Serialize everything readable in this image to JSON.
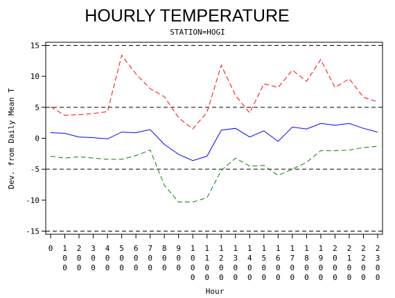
{
  "chart_data": {
    "type": "line",
    "title": "HOURLY TEMPERATURE",
    "subtitle": "STATION=HOGI",
    "xlabel": "Hour",
    "ylabel": "Dev. from Daily Mean T",
    "x": [
      "0",
      "100",
      "200",
      "300",
      "400",
      "500",
      "600",
      "700",
      "800",
      "900",
      "1000",
      "1100",
      "1200",
      "1300",
      "1400",
      "1500",
      "1600",
      "1700",
      "1800",
      "1900",
      "2000",
      "2100",
      "2200",
      "2300"
    ],
    "y_ticks": [
      -15,
      -10,
      -5,
      0,
      5,
      10,
      15
    ],
    "ylim": [
      -15.5,
      15.5
    ],
    "reference_lines": [
      -15,
      -5,
      5,
      15
    ],
    "grid": false,
    "legend": "none",
    "series": [
      {
        "color": "#ff0000",
        "style": "dashed",
        "values": [
          5.1,
          3.7,
          3.8,
          4.0,
          4.3,
          13.4,
          10.4,
          8.0,
          6.7,
          3.3,
          1.5,
          4.2,
          11.8,
          6.9,
          4.1,
          8.8,
          8.2,
          11.0,
          9.2,
          12.7,
          8.2,
          9.6,
          6.6,
          5.9
        ]
      },
      {
        "color": "#0000ff",
        "style": "solid",
        "values": [
          0.9,
          0.8,
          0.2,
          0.1,
          -0.1,
          1.0,
          0.9,
          1.4,
          -1.0,
          -2.6,
          -3.6,
          -2.9,
          1.3,
          1.6,
          0.2,
          1.2,
          -0.5,
          1.8,
          1.5,
          2.4,
          2.1,
          2.4,
          1.6,
          1.0
        ]
      },
      {
        "color": "#008000",
        "style": "dashed",
        "values": [
          -2.9,
          -3.2,
          -3.0,
          -3.2,
          -3.4,
          -3.4,
          -2.8,
          -1.9,
          -7.6,
          -10.3,
          -10.3,
          -9.6,
          -5.2,
          -3.2,
          -4.5,
          -4.4,
          -6.0,
          -5.0,
          -3.9,
          -2.0,
          -2.0,
          -1.9,
          -1.5,
          -1.3
        ]
      }
    ]
  }
}
